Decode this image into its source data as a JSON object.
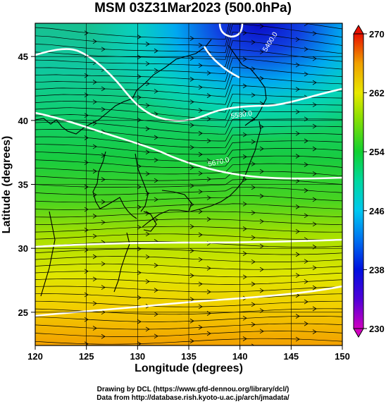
{
  "title": "MSM 03Z31Mar2023 (500.0hPa)",
  "axes": {
    "xlabel": "Longitude (degrees)",
    "ylabel": "Latitude  (degrees)",
    "xlim": [
      120,
      150
    ],
    "ylim": [
      22.4,
      47.6
    ],
    "xticks": [
      120,
      125,
      130,
      135,
      140,
      145,
      150
    ],
    "yticks": [
      25,
      30,
      35,
      40,
      45
    ]
  },
  "colorbar": {
    "min": 230,
    "max": 270,
    "ticks": [
      230,
      238,
      246,
      254,
      262,
      270
    ]
  },
  "contour_labels": [
    "5400.0",
    "5580.0",
    "5670.0"
  ],
  "credits": {
    "line1": "Drawing by DCL (https://www.gfd-dennou.org/library/dcl/)",
    "line2": "Data from http://database.rish.kyoto-u.ac.jp/arch/jmadata/"
  },
  "colors": {
    "cold": "#1a0fd0",
    "cyan": "#00c8f0",
    "green": "#20d020",
    "yellow": "#e8e800",
    "orange": "#f0a000"
  }
}
